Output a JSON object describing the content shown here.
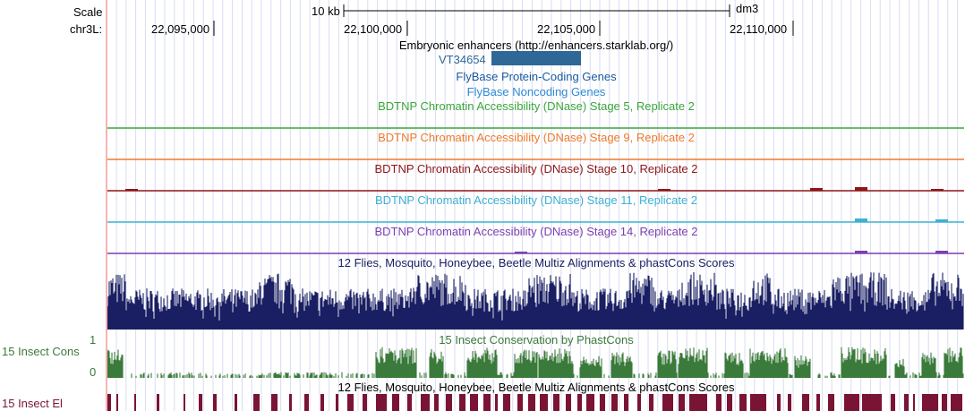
{
  "ruler": {
    "scale_label": "Scale",
    "scale_bar_label": "10 kb",
    "assembly": "dm3",
    "chrom_label": "chr3L:",
    "positions": [
      "22,095,000",
      "22,100,000",
      "22,105,000",
      "22,110,000"
    ]
  },
  "tracks": {
    "enhancers": {
      "title": "Embryonic enhancers (http://enhancers.starklab.org/)",
      "item_name": "VT34654",
      "color": "#2f6797"
    },
    "flybase_coding": {
      "title": "FlyBase Protein-Coding Genes",
      "color": "#1a5aa0"
    },
    "flybase_noncoding": {
      "title": "FlyBase Noncoding Genes",
      "color": "#2f8ad6"
    },
    "dnase": [
      {
        "title": "BDTNP Chromatin Accessibility (DNase) Stage 5, Replicate 2",
        "color": "#3aa63a"
      },
      {
        "title": "BDTNP Chromatin Accessibility (DNase) Stage 9, Replicate 2",
        "color": "#ee7a2b"
      },
      {
        "title": "BDTNP Chromatin Accessibility (DNase) Stage 10, Replicate 2",
        "color": "#8f1418"
      },
      {
        "title": "BDTNP Chromatin Accessibility (DNase) Stage 11, Replicate 2",
        "color": "#3fb0d2"
      },
      {
        "title": "BDTNP Chromatin Accessibility (DNase) Stage 14, Replicate 2",
        "color": "#7c3fb0"
      }
    ],
    "multiz": {
      "title": "12 Flies, Mosquito, Honeybee, Beetle Multiz Alignments & phastCons Scores",
      "color": "#1a1f63"
    },
    "phastcons": {
      "title": "15 Insect Conservation by PhastCons",
      "side_label": "15 Insect Cons",
      "axis_max": "1",
      "axis_min": "0",
      "color": "#3a7a3a"
    },
    "elements": {
      "title": "12 Flies, Mosquito, Honeybee, Beetle Multiz Alignments & phastCons Scores",
      "side_label": "15 Insect El",
      "color": "#7a1434"
    }
  }
}
